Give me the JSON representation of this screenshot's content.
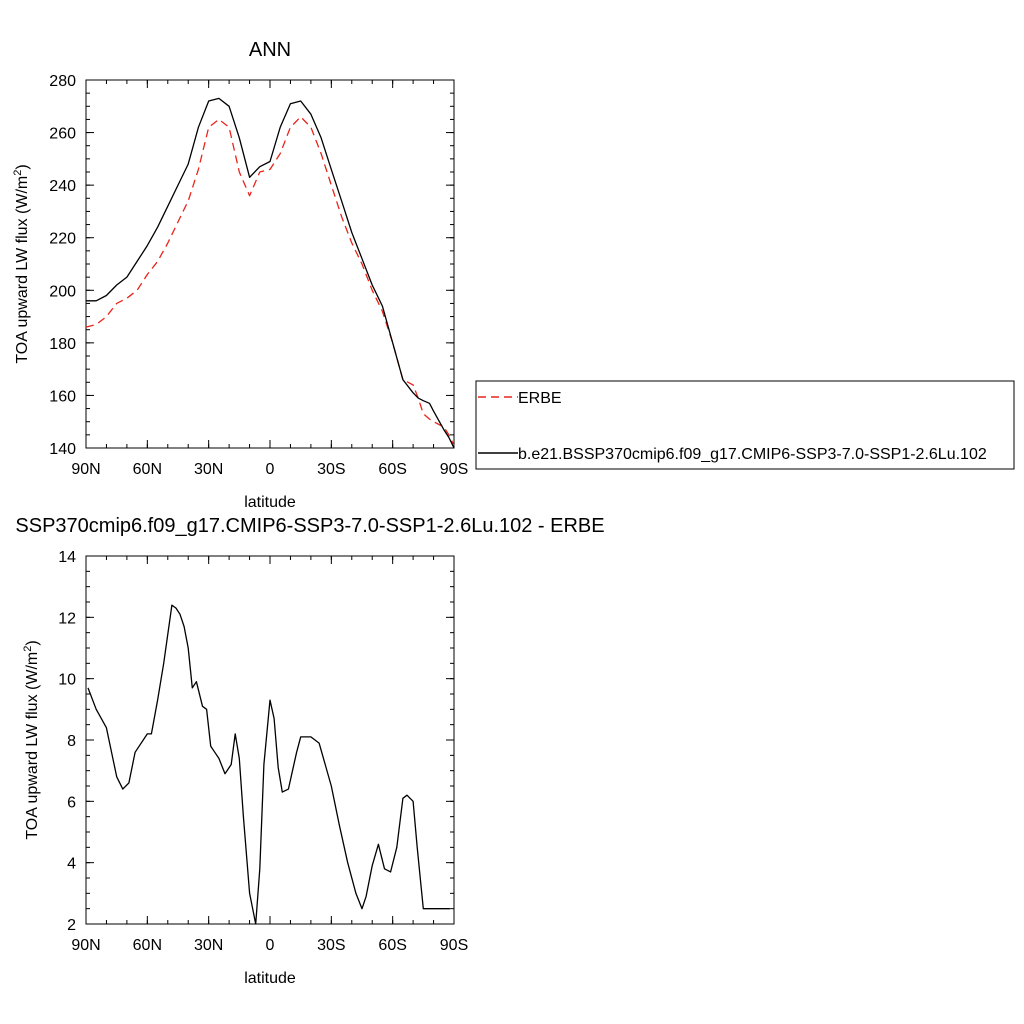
{
  "chart_data": [
    {
      "type": "line",
      "title": "ANN",
      "xlabel": "latitude",
      "ylabel": "TOA upward LW flux (W/m",
      "ylabel_sup": "2",
      "ylabel_close": ")",
      "xlim": [
        90,
        -90
      ],
      "ylim": [
        140,
        280
      ],
      "xticks": [
        90,
        60,
        30,
        0,
        -30,
        -60,
        -90
      ],
      "xtick_labels": [
        "90N",
        "60N",
        "30N",
        "0",
        "30S",
        "60S",
        "90S"
      ],
      "yticks": [
        140,
        160,
        180,
        200,
        220,
        240,
        260,
        280
      ],
      "ytick_labels": [
        "140",
        "160",
        "180",
        "200",
        "220",
        "240",
        "260",
        "280"
      ],
      "legend_position": "right",
      "legend": [
        "ERBE",
        "b.e21.BSSP370cmip6.f09_g17.CMIP6-SSP3-7.0-SSP1-2.6Lu.102"
      ],
      "series": [
        {
          "name": "ERBE",
          "color": "#e8241b",
          "dash": true,
          "x": [
            90,
            85,
            80,
            75,
            70,
            65,
            60,
            55,
            50,
            45,
            40,
            35,
            30,
            25,
            20,
            15,
            10,
            5,
            0,
            -5,
            -10,
            -15,
            -20,
            -25,
            -30,
            -35,
            -40,
            -45,
            -50,
            -55,
            -60,
            -65,
            -70,
            -72.5,
            -75,
            -78,
            -80,
            -85,
            -87.5,
            -90
          ],
          "y": [
            186,
            187,
            190,
            195,
            197,
            200,
            206,
            211,
            218,
            226,
            234,
            246,
            262,
            265,
            262,
            245,
            236,
            245,
            246,
            252,
            262,
            266,
            262,
            252,
            240,
            228,
            218,
            210,
            200,
            192,
            180,
            166,
            164,
            159,
            153,
            151,
            150,
            148,
            145,
            141
          ]
        },
        {
          "name": "b.e21.BSSP370cmip6.f09_g17.CMIP6-SSP3-7.0-SSP1-2.6Lu.102",
          "color": "#000000",
          "dash": false,
          "x": [
            90,
            85,
            80,
            75,
            70,
            65,
            60,
            55,
            50,
            45,
            40,
            35,
            30,
            25,
            20,
            15,
            10,
            5,
            0,
            -5,
            -10,
            -15,
            -20,
            -25,
            -30,
            -35,
            -40,
            -45,
            -50,
            -55,
            -60,
            -65,
            -70,
            -72.5,
            -75,
            -78,
            -80,
            -85,
            -87.5,
            -90
          ],
          "y": [
            196,
            196,
            198,
            202,
            205,
            211,
            217,
            224,
            232,
            240,
            248,
            262,
            272,
            273,
            270,
            258,
            243,
            247,
            249,
            262,
            271,
            272,
            267,
            258,
            246,
            234,
            222,
            212,
            202,
            194,
            180,
            166,
            161,
            159,
            158,
            157,
            154,
            147,
            144,
            140
          ]
        }
      ]
    },
    {
      "type": "line",
      "title": "SSP370cmip6.f09_g17.CMIP6-SSP3-7.0-SSP1-2.6Lu.102 - ERBE",
      "xlabel": "latitude",
      "ylabel": "TOA upward LW flux (W/m",
      "ylabel_sup": "2",
      "ylabel_close": ")",
      "xlim": [
        90,
        -90
      ],
      "ylim": [
        2,
        14
      ],
      "xticks": [
        90,
        60,
        30,
        0,
        -30,
        -60,
        -90
      ],
      "xtick_labels": [
        "90N",
        "60N",
        "30N",
        "0",
        "30S",
        "60S",
        "90S"
      ],
      "yticks": [
        2,
        4,
        6,
        8,
        10,
        12,
        14
      ],
      "ytick_labels": [
        "2",
        "4",
        "6",
        "8",
        "10",
        "12",
        "14"
      ],
      "series": [
        {
          "color": "#000000",
          "dash": false,
          "x": [
            89,
            85,
            80,
            75,
            72,
            69,
            66,
            60,
            58,
            55,
            52,
            48,
            46,
            44,
            42,
            40,
            38,
            36,
            33,
            31,
            29,
            27,
            25,
            22,
            19,
            17,
            15,
            13,
            10,
            7,
            5,
            3,
            0,
            -2,
            -4,
            -6,
            -9,
            -11,
            -13,
            -15,
            -17,
            -20,
            -24,
            -27,
            -30,
            -34,
            -38,
            -42,
            -45,
            -47,
            -50,
            -53,
            -56,
            -59,
            -62,
            -65,
            -67,
            -70,
            -72,
            -75,
            -77,
            -79,
            -81,
            -83,
            -86,
            -88
          ],
          "y": [
            9.7,
            9.0,
            8.4,
            6.8,
            6.4,
            6.6,
            7.6,
            8.2,
            8.2,
            9.3,
            10.5,
            12.4,
            12.3,
            12.1,
            11.7,
            11.0,
            9.7,
            9.9,
            9.1,
            9.0,
            7.8,
            7.6,
            7.4,
            6.9,
            7.2,
            8.2,
            7.4,
            5.5,
            3.0,
            2.0,
            3.8,
            7.2,
            9.3,
            8.7,
            7.1,
            6.3,
            6.4,
            7.0,
            7.6,
            8.1,
            8.1,
            8.1,
            7.9,
            7.2,
            6.5,
            5.2,
            4.0,
            3.0,
            2.5,
            2.9,
            3.9,
            4.6,
            3.8,
            3.7,
            4.5,
            6.1,
            6.2,
            6.0,
            4.5,
            2.5,
            2.5,
            2.5,
            2.5,
            2.5,
            2.5,
            2.5
          ]
        }
      ]
    }
  ]
}
